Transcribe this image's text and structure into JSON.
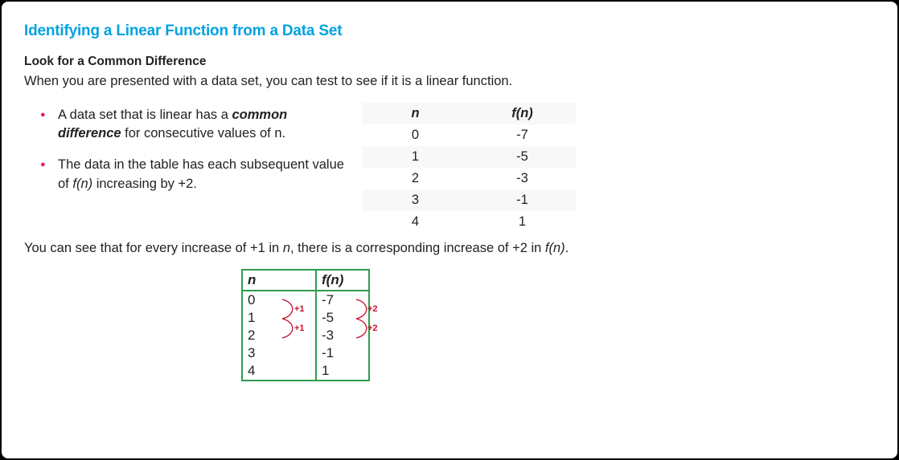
{
  "title": "Identifying a Linear Function from a Data Set",
  "subtitle": "Look for a Common Difference",
  "intro": "When you are presented with a data set, you can test to see if it is a linear function.",
  "bullets": [
    "A data set that is linear has a <b><i>common difference</i></b> for consecutive values of n.",
    "The data in the table has each subsequent value of <i>f(n)</i> increasing by +2."
  ],
  "table1": {
    "headers": [
      "n",
      "f(n)"
    ],
    "rows": [
      [
        "0",
        "-7"
      ],
      [
        "1",
        "-5"
      ],
      [
        "2",
        "-3"
      ],
      [
        "3",
        "-1"
      ],
      [
        "4",
        "1"
      ]
    ],
    "header_bg": "#f8f8f8",
    "stripe_bg": "#f8f8f8"
  },
  "conclusion": "You can see that for every increase of +1 in <i>n</i>, there is a corresponding increase of +2 in <i>f(n)</i>.",
  "table2": {
    "headers": [
      "n",
      "f(n)"
    ],
    "rows": [
      [
        "0",
        "-7"
      ],
      [
        "1",
        "-5"
      ],
      [
        "2",
        "-3"
      ],
      [
        "3",
        "-1"
      ],
      [
        "4",
        "1"
      ]
    ],
    "border_color": "#2e9c4d",
    "annotations": {
      "color": "#c8102e",
      "left_labels": [
        "+1",
        "+1"
      ],
      "right_labels": [
        "+2",
        "+2"
      ]
    }
  },
  "colors": {
    "title": "#00a2e0",
    "bullet_marker": "#e91e63"
  }
}
